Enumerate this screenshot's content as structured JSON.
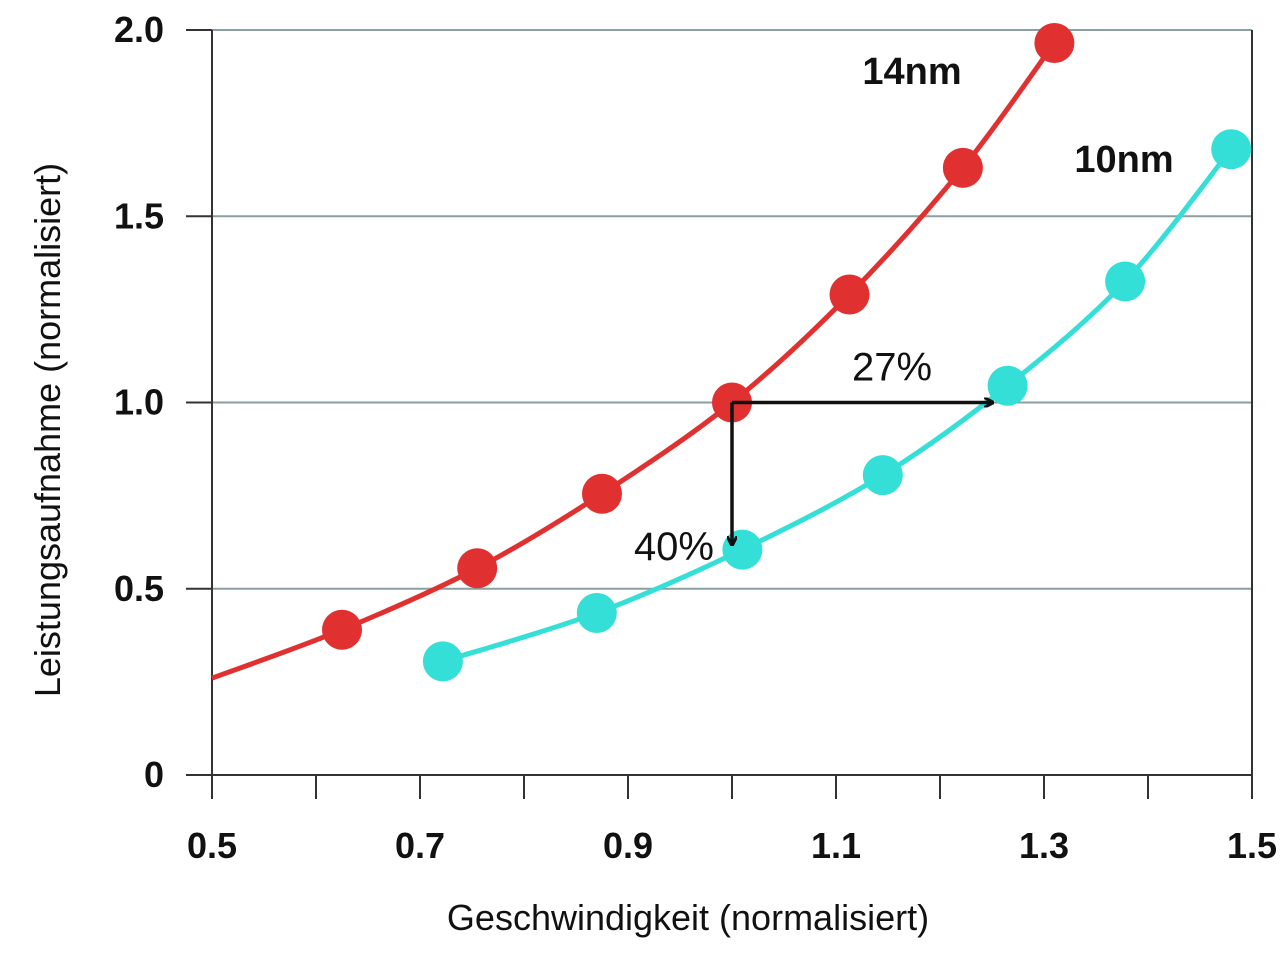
{
  "chart_data": {
    "type": "line",
    "title": "",
    "xlabel": "Geschwindigkeit (normalisiert)",
    "ylabel": "Leistungsaufnahme (normalisiert)",
    "xlim": [
      0.5,
      1.5
    ],
    "ylim": [
      0,
      2.0
    ],
    "x_ticks": [
      "0.5",
      "0.7",
      "0.9",
      "1.1",
      "1.3",
      "1.5"
    ],
    "y_ticks": [
      "0",
      "0.5",
      "1.0",
      "1.5",
      "2.0"
    ],
    "grid": "horizontal",
    "series": [
      {
        "name": "14nm",
        "color": "#e03030",
        "x": [
          0.625,
          0.755,
          0.875,
          1.0,
          1.113,
          1.222,
          1.31
        ],
        "y": [
          0.39,
          0.555,
          0.755,
          1.0,
          1.29,
          1.63,
          1.965
        ],
        "curve_start": [
          0.5,
          0.26
        ]
      },
      {
        "name": "10nm",
        "color": "#33dfd6",
        "x": [
          0.722,
          0.87,
          1.01,
          1.145,
          1.265,
          1.378,
          1.48
        ],
        "y": [
          0.305,
          0.435,
          0.605,
          0.805,
          1.045,
          1.325,
          1.68
        ]
      }
    ],
    "annotations": [
      {
        "text": "27%",
        "type": "arrow-horizontal",
        "from": [
          1.0,
          1.0
        ],
        "to": [
          1.25,
          1.0
        ]
      },
      {
        "text": "40%",
        "type": "arrow-vertical",
        "from": [
          1.0,
          1.0
        ],
        "to": [
          1.0,
          0.62
        ]
      }
    ]
  }
}
